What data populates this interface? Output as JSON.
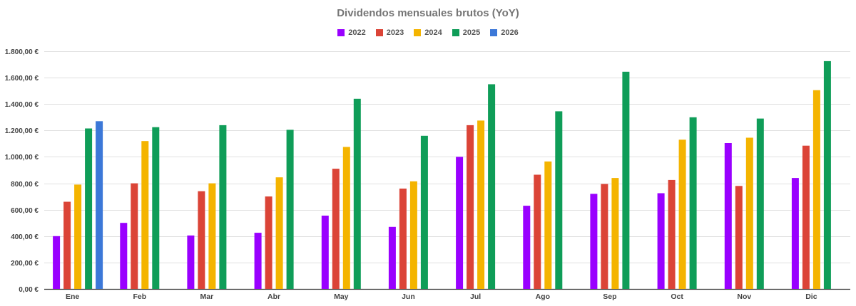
{
  "chart_data": {
    "type": "bar",
    "title": "Dividendos mensuales brutos (YoY)",
    "xlabel": "",
    "ylabel": "",
    "ylim": [
      0,
      1800
    ],
    "yticks": [
      "0,00 €",
      "200,00 €",
      "400,00 €",
      "600,00 €",
      "800,00 €",
      "1.000,00 €",
      "1.200,00 €",
      "1.400,00 €",
      "1.600,00 €",
      "1.800,00 €"
    ],
    "categories": [
      "Ene",
      "Feb",
      "Mar",
      "Abr",
      "May",
      "Jun",
      "Jul",
      "Ago",
      "Sep",
      "Oct",
      "Nov",
      "Dic"
    ],
    "grid": true,
    "legend_position": "top",
    "series": [
      {
        "name": "2022",
        "color": "#9900ff",
        "values": [
          400,
          500,
          405,
          425,
          555,
          470,
          1000,
          630,
          720,
          725,
          1105,
          840
        ]
      },
      {
        "name": "2023",
        "color": "#db4437",
        "values": [
          660,
          800,
          740,
          700,
          910,
          760,
          1240,
          865,
          795,
          825,
          780,
          1085
        ]
      },
      {
        "name": "2024",
        "color": "#f4b400",
        "values": [
          790,
          1120,
          800,
          845,
          1075,
          815,
          1275,
          965,
          840,
          1130,
          1145,
          1505
        ]
      },
      {
        "name": "2025",
        "color": "#0f9d58",
        "values": [
          1215,
          1225,
          1240,
          1205,
          1440,
          1160,
          1550,
          1345,
          1645,
          1300,
          1290,
          1725
        ]
      },
      {
        "name": "2026",
        "color": "#3c78d8",
        "values": [
          1270,
          null,
          null,
          null,
          null,
          null,
          null,
          null,
          null,
          null,
          null,
          null
        ]
      }
    ]
  }
}
